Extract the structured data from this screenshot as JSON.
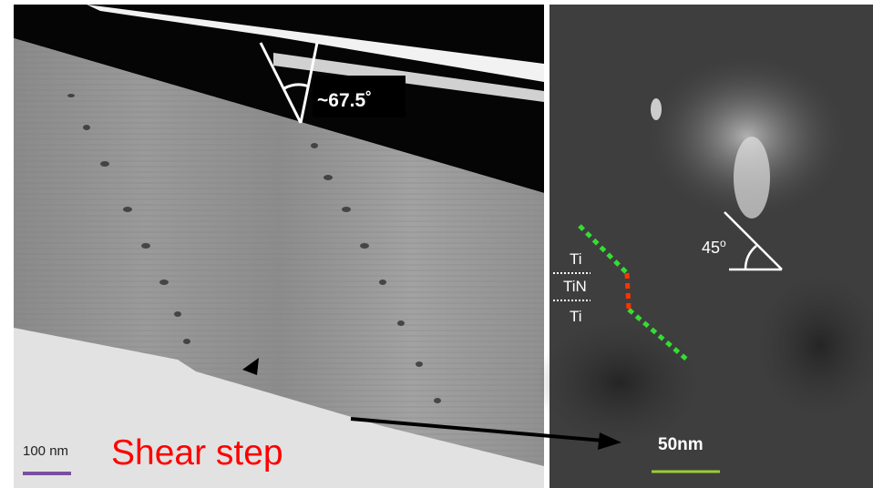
{
  "left_panel": {
    "angle_label": "~67.5˚",
    "arrow_label": "Shear step",
    "scale_bar": "100 nm"
  },
  "right_panel": {
    "layers": [
      "Ti",
      "TiN",
      "Ti"
    ],
    "angle_value": "45",
    "angle_unit": "o",
    "scale_bar": "50nm"
  }
}
